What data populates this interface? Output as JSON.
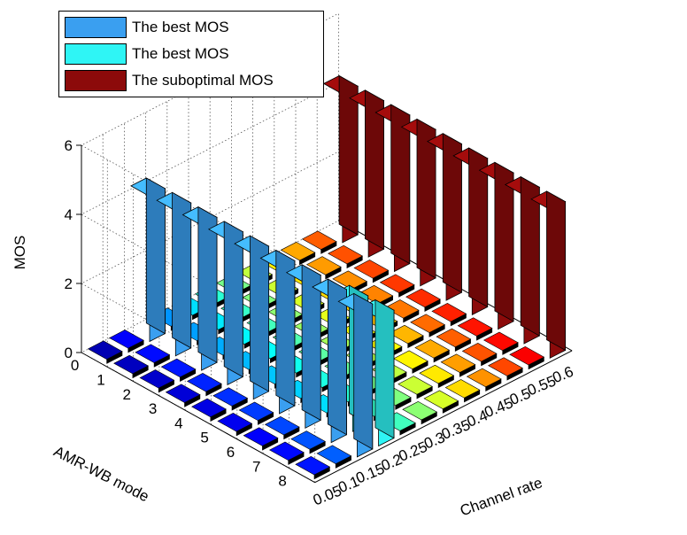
{
  "chart_data": {
    "type": "bar3d",
    "title": "",
    "xlabel": "Channel rate",
    "ylabel": "AMR-WB mode",
    "zlabel": "MOS",
    "zlim": [
      0,
      6
    ],
    "z_ticks": [
      "0",
      "2",
      "4",
      "6"
    ],
    "channel_rate_ticks": [
      "0.05",
      "0.1",
      "0.15",
      "0.2",
      "0.25",
      "0.3",
      "0.35",
      "0.4",
      "0.45",
      "0.5",
      "0.55",
      "0.6"
    ],
    "amr_mode_ticks": [
      "0",
      "1",
      "2",
      "3",
      "4",
      "5",
      "6",
      "7",
      "8"
    ],
    "legend": [
      {
        "label": "The best MOS",
        "color": "#3a9ff0"
      },
      {
        "label": "The best MOS",
        "color": "#2ff5f5"
      },
      {
        "label": "The suboptimal MOS",
        "color": "#8c0a0a"
      }
    ],
    "grid": true,
    "series": [
      {
        "name": "The best MOS",
        "color": "#3a9ff0",
        "channel_rate": 0.15,
        "modes": [
          0,
          1,
          2,
          3,
          4,
          5,
          6,
          7,
          8
        ],
        "values": [
          4.2,
          4.2,
          4.2,
          4.2,
          4.2,
          4.2,
          4.2,
          4.2,
          4.2
        ]
      },
      {
        "name": "The best MOS",
        "color": "#2ff5f5",
        "channel_rate": 0.2,
        "modes": [
          7,
          8
        ],
        "values": [
          3.7,
          3.7
        ]
      },
      {
        "name": "The suboptimal MOS",
        "color": "#8c0a0a",
        "channel_rate": 0.6,
        "modes": [
          0,
          1,
          2,
          3,
          4,
          5,
          6,
          7,
          8
        ],
        "values": [
          4.3,
          4.3,
          4.3,
          4.3,
          4.3,
          4.3,
          4.3,
          4.3,
          4.3
        ]
      }
    ]
  }
}
